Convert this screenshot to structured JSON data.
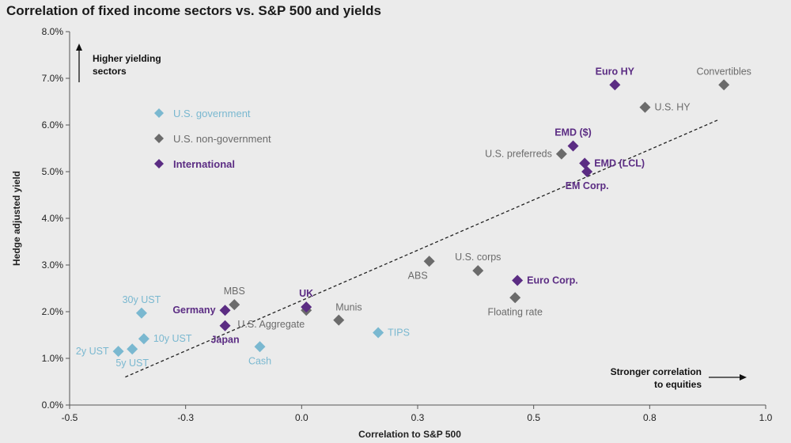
{
  "chart_data": {
    "type": "scatter",
    "title": "Correlation of fixed income sectors vs. S&P 500 and yields",
    "xlabel": "Correlation to S&P 500",
    "ylabel": "Hedge adjusted yield",
    "xlim": [
      -0.5,
      1.0
    ],
    "ylim": [
      0,
      8
    ],
    "x_ticks": [
      -0.5,
      -0.25,
      0,
      0.25,
      0.5,
      0.75,
      1.0
    ],
    "x_tick_labels": [
      "-0.5",
      "-0.3",
      "0.0",
      "0.3",
      "0.5",
      "0.8",
      "1.0"
    ],
    "y_ticks": [
      0,
      1,
      2,
      3,
      4,
      5,
      6,
      7,
      8
    ],
    "y_tick_labels": [
      "0.0%",
      "1.0%",
      "2.0%",
      "3.0%",
      "4.0%",
      "5.0%",
      "6.0%",
      "7.0%",
      "8.0%"
    ],
    "grid": false,
    "legend_position": "top-left",
    "series": [
      {
        "name": "U.S. government",
        "color": "#7ab8d0",
        "points": [
          {
            "label": "2y UST",
            "x": -0.395,
            "y": 1.15,
            "label_pos": "left"
          },
          {
            "label": "5y UST",
            "x": -0.365,
            "y": 1.2,
            "label_pos": "below"
          },
          {
            "label": "10y UST",
            "x": -0.34,
            "y": 1.42,
            "label_pos": "right"
          },
          {
            "label": "30y UST",
            "x": -0.345,
            "y": 1.97,
            "label_pos": "above"
          },
          {
            "label": "Cash",
            "x": -0.09,
            "y": 1.25,
            "label_pos": "below"
          },
          {
            "label": "TIPS",
            "x": 0.165,
            "y": 1.55,
            "label_pos": "right"
          }
        ]
      },
      {
        "name": "U.S. non-government",
        "color": "#6b6b6b",
        "points": [
          {
            "label": "MBS",
            "x": -0.145,
            "y": 2.15,
            "label_pos": "above"
          },
          {
            "label": "U.S. Aggregate",
            "x": 0.01,
            "y": 2.03,
            "label_pos": "below-left"
          },
          {
            "label": "Munis",
            "x": 0.08,
            "y": 1.82,
            "label_pos": "above-right"
          },
          {
            "label": "ABS",
            "x": 0.275,
            "y": 3.08,
            "label_pos": "below-left"
          },
          {
            "label": "U.S. corps",
            "x": 0.38,
            "y": 2.88,
            "label_pos": "above"
          },
          {
            "label": "Floating rate",
            "x": 0.46,
            "y": 2.3,
            "label_pos": "below"
          },
          {
            "label": "U.S. preferreds",
            "x": 0.56,
            "y": 5.38,
            "label_pos": "left"
          },
          {
            "label": "U.S. HY",
            "x": 0.74,
            "y": 6.38,
            "label_pos": "right"
          },
          {
            "label": "Convertibles",
            "x": 0.91,
            "y": 6.86,
            "label_pos": "above"
          }
        ]
      },
      {
        "name": "International",
        "color": "#5b2c83",
        "points": [
          {
            "label": "Germany",
            "x": -0.165,
            "y": 2.03,
            "label_pos": "left"
          },
          {
            "label": "Japan",
            "x": -0.165,
            "y": 1.7,
            "label_pos": "below"
          },
          {
            "label": "UK",
            "x": 0.01,
            "y": 2.1,
            "label_pos": "above"
          },
          {
            "label": "Euro Corp.",
            "x": 0.465,
            "y": 2.67,
            "label_pos": "right"
          },
          {
            "label": "EMD ($)",
            "x": 0.585,
            "y": 5.55,
            "label_pos": "above"
          },
          {
            "label": "EMD (LCL)",
            "x": 0.61,
            "y": 5.18,
            "label_pos": "right"
          },
          {
            "label": "EM Corp.",
            "x": 0.615,
            "y": 5.0,
            "label_pos": "below"
          },
          {
            "label": "Euro HY",
            "x": 0.675,
            "y": 6.86,
            "label_pos": "above"
          }
        ]
      }
    ],
    "trendline": {
      "x1": -0.38,
      "y1": 0.6,
      "x2": 0.9,
      "y2": 6.12,
      "style": "dashed"
    },
    "annotations": {
      "higher_yield_line1": "Higher yielding",
      "higher_yield_line2": "sectors",
      "stronger_corr_line1": "Stronger correlation",
      "stronger_corr_line2": "to equities"
    }
  }
}
